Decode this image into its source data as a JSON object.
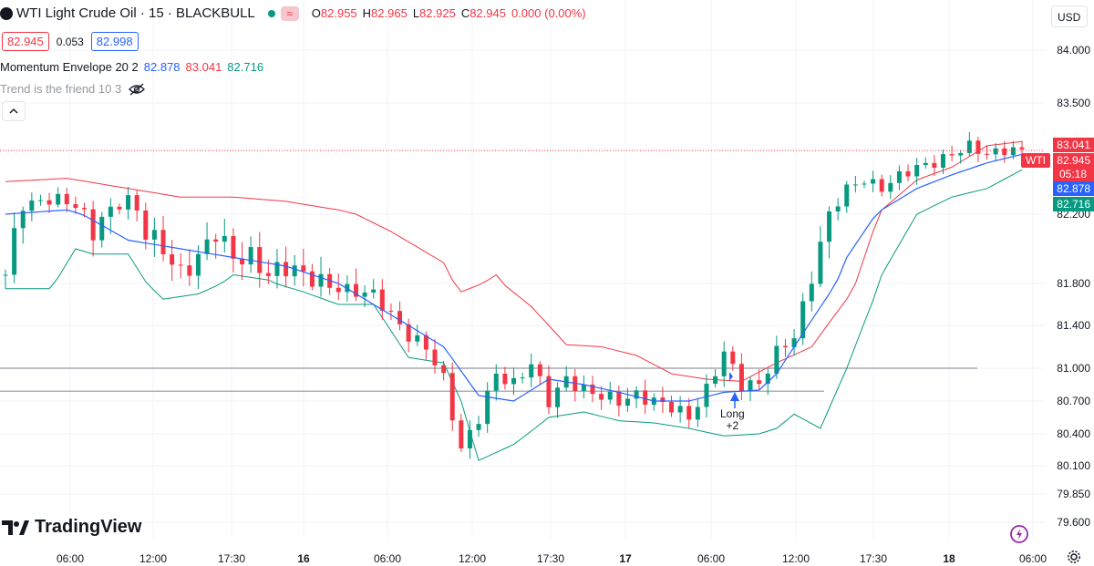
{
  "header": {
    "title": "WTI Light Crude Oil · 15 · BLACKBULL",
    "ohlc": [
      {
        "k": "O",
        "v": "82.955"
      },
      {
        "k": "H",
        "v": "82.965"
      },
      {
        "k": "L",
        "v": "82.925"
      },
      {
        "k": "C",
        "v": "82.945"
      },
      {
        "k": "",
        "v": "0.000 (0.00%)"
      }
    ],
    "sell_price": "82.945",
    "spread": "0.053",
    "buy_price": "82.998",
    "currency": "USD"
  },
  "indicators": [
    {
      "name": "Momentum Envelope 20 2",
      "values": [
        "82.878",
        "83.041",
        "82.716"
      ]
    },
    {
      "name": "Trend is the friend 10 3"
    }
  ],
  "logo_text": "TradingView",
  "signal": {
    "label": "Long",
    "qty": "+2"
  },
  "colors": {
    "up": "#089981",
    "down": "#f23645",
    "basis": "#2962ff",
    "upper": "#f23645",
    "lower": "#089981",
    "grid": "#f0f3fa",
    "hline": "#787b86"
  },
  "chart_data": {
    "type": "candlestick",
    "symbol": "WTI",
    "y_ticks": [
      "84.000",
      "83.500",
      "82.200",
      "81.800",
      "81.400",
      "81.000",
      "80.700",
      "80.400",
      "80.100",
      "79.850",
      "79.600"
    ],
    "x_ticks": [
      "06:00",
      "12:00",
      "17:30",
      "16",
      "06:00",
      "12:00",
      "17:30",
      "17",
      "06:00",
      "12:00",
      "17:30",
      "18",
      "06:00"
    ],
    "price_labels": [
      {
        "text": "83.041",
        "color": "#f23645"
      },
      {
        "text": "82.945",
        "color": "#f23645",
        "tag": "WTI",
        "countdown": "05:18"
      },
      {
        "text": "82.878",
        "color": "#2962ff"
      },
      {
        "text": "82.716",
        "color": "#089981"
      }
    ],
    "horizontal_lines": [
      81.0,
      80.79
    ],
    "envelope": {
      "upper": [
        [
          0,
          82.58
        ],
        [
          7,
          82.62
        ],
        [
          14,
          82.5
        ],
        [
          20,
          82.4
        ],
        [
          26,
          82.4
        ],
        [
          32,
          82.35
        ],
        [
          38,
          82.25
        ],
        [
          44,
          82.1
        ],
        [
          50,
          81.92
        ],
        [
          52,
          81.72
        ],
        [
          56,
          81.85
        ],
        [
          60,
          81.58
        ],
        [
          64,
          81.22
        ],
        [
          68,
          81.2
        ],
        [
          72,
          81.12
        ],
        [
          76,
          80.95
        ],
        [
          80,
          80.9
        ],
        [
          84,
          80.88
        ],
        [
          88,
          81.05
        ],
        [
          92,
          81.2
        ],
        [
          96,
          81.65
        ],
        [
          100,
          82.25
        ],
        [
          104,
          82.6
        ],
        [
          108,
          82.75
        ],
        [
          112,
          83.0
        ],
        [
          116,
          83.05
        ]
      ],
      "basis": [
        [
          0,
          82.2
        ],
        [
          7,
          82.25
        ],
        [
          14,
          82.05
        ],
        [
          20,
          82.0
        ],
        [
          26,
          81.95
        ],
        [
          32,
          81.9
        ],
        [
          38,
          81.8
        ],
        [
          44,
          81.5
        ],
        [
          50,
          81.2
        ],
        [
          54,
          80.75
        ],
        [
          58,
          80.7
        ],
        [
          62,
          80.9
        ],
        [
          66,
          80.85
        ],
        [
          70,
          80.78
        ],
        [
          74,
          80.7
        ],
        [
          78,
          80.7
        ],
        [
          82,
          80.78
        ],
        [
          86,
          80.8
        ],
        [
          88,
          80.95
        ],
        [
          92,
          81.45
        ],
        [
          96,
          81.95
        ],
        [
          100,
          82.25
        ],
        [
          104,
          82.5
        ],
        [
          108,
          82.66
        ],
        [
          112,
          82.8
        ],
        [
          116,
          82.9
        ]
      ],
      "lower": [
        [
          0,
          81.75
        ],
        [
          5,
          81.75
        ],
        [
          8,
          82.0
        ],
        [
          10,
          81.97
        ],
        [
          14,
          81.97
        ],
        [
          18,
          81.65
        ],
        [
          22,
          81.7
        ],
        [
          26,
          81.85
        ],
        [
          30,
          81.82
        ],
        [
          34,
          81.72
        ],
        [
          38,
          81.6
        ],
        [
          42,
          81.6
        ],
        [
          46,
          81.1
        ],
        [
          50,
          81.05
        ],
        [
          52,
          80.7
        ],
        [
          54,
          80.15
        ],
        [
          58,
          80.3
        ],
        [
          62,
          80.55
        ],
        [
          66,
          80.6
        ],
        [
          70,
          80.52
        ],
        [
          74,
          80.5
        ],
        [
          78,
          80.45
        ],
        [
          82,
          80.38
        ],
        [
          86,
          80.4
        ],
        [
          88,
          80.45
        ],
        [
          90,
          80.58
        ],
        [
          93,
          80.45
        ],
        [
          96,
          81.0
        ],
        [
          100,
          81.85
        ],
        [
          104,
          82.2
        ],
        [
          108,
          82.4
        ],
        [
          112,
          82.5
        ],
        [
          116,
          82.72
        ]
      ]
    },
    "close": [
      [
        0,
        81.85
      ],
      [
        2,
        82.3
      ],
      [
        4,
        82.35
      ],
      [
        6,
        82.38
      ],
      [
        8,
        82.3
      ],
      [
        10,
        82.1
      ],
      [
        12,
        82.25
      ],
      [
        14,
        82.38
      ],
      [
        16,
        82.1
      ],
      [
        18,
        82.0
      ],
      [
        20,
        81.85
      ],
      [
        22,
        81.95
      ],
      [
        24,
        82.1
      ],
      [
        26,
        81.95
      ],
      [
        28,
        81.95
      ],
      [
        30,
        81.85
      ],
      [
        32,
        81.9
      ],
      [
        34,
        81.85
      ],
      [
        36,
        81.8
      ],
      [
        38,
        81.75
      ],
      [
        40,
        81.72
      ],
      [
        42,
        81.7
      ],
      [
        44,
        81.5
      ],
      [
        46,
        81.3
      ],
      [
        48,
        81.2
      ],
      [
        50,
        80.9
      ],
      [
        52,
        80.25
      ],
      [
        54,
        80.55
      ],
      [
        56,
        80.95
      ],
      [
        58,
        80.85
      ],
      [
        60,
        81.05
      ],
      [
        62,
        80.7
      ],
      [
        64,
        80.9
      ],
      [
        66,
        80.8
      ],
      [
        68,
        80.75
      ],
      [
        70,
        80.7
      ],
      [
        72,
        80.75
      ],
      [
        74,
        80.7
      ],
      [
        76,
        80.65
      ],
      [
        78,
        80.55
      ],
      [
        80,
        80.8
      ],
      [
        82,
        81.15
      ],
      [
        84,
        80.85
      ],
      [
        86,
        80.85
      ],
      [
        88,
        81.15
      ],
      [
        90,
        81.3
      ],
      [
        92,
        81.85
      ],
      [
        94,
        82.2
      ],
      [
        96,
        82.5
      ],
      [
        98,
        82.6
      ],
      [
        100,
        82.5
      ],
      [
        102,
        82.65
      ],
      [
        104,
        82.75
      ],
      [
        106,
        82.8
      ],
      [
        108,
        82.9
      ],
      [
        110,
        83.0
      ],
      [
        112,
        82.9
      ],
      [
        114,
        82.95
      ],
      [
        116,
        82.945
      ]
    ]
  }
}
